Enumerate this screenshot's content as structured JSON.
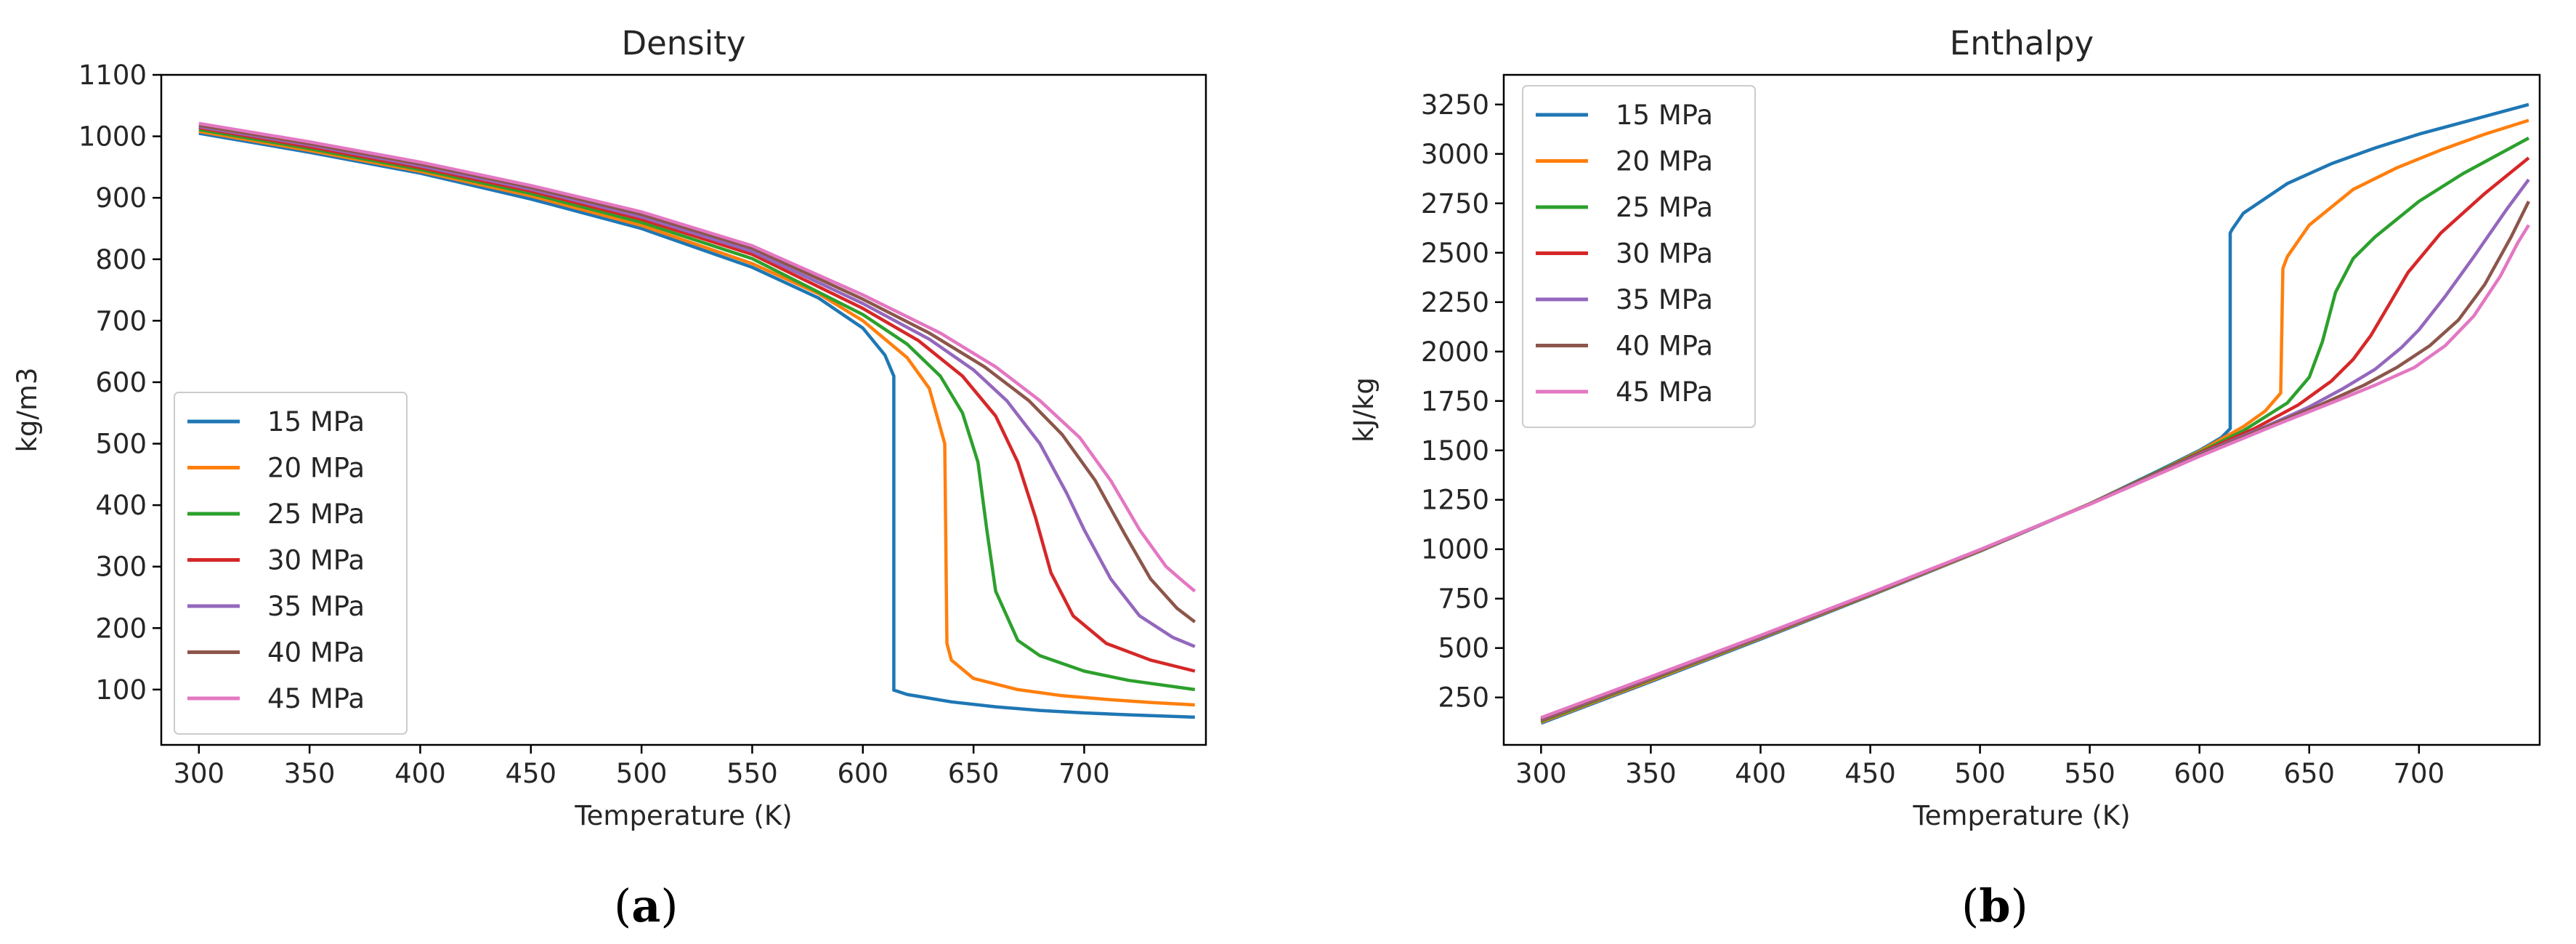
{
  "chart_data": [
    {
      "type": "line",
      "title": "Density",
      "xlabel": "Temperature (K)",
      "ylabel": "kg/m3",
      "caption": {
        "prefix": "(",
        "label": "a",
        "suffix": ")"
      },
      "xlim": [
        283,
        755
      ],
      "ylim": [
        10,
        1100
      ],
      "xticks": [
        300,
        350,
        400,
        450,
        500,
        550,
        600,
        650,
        700
      ],
      "yticks": [
        100,
        200,
        300,
        400,
        500,
        600,
        700,
        800,
        900,
        1000,
        1100
      ],
      "legend_position": "lower-left",
      "series": [
        {
          "name": "15 MPa",
          "color": "#1f77b4",
          "x": [
            300,
            350,
            400,
            450,
            500,
            550,
            580,
            600,
            610,
            614,
            614,
            615,
            620,
            640,
            660,
            680,
            700,
            720,
            750
          ],
          "y": [
            1005,
            974,
            940,
            898,
            850,
            787,
            737,
            688,
            644,
            610,
            99,
            98,
            92,
            80,
            72,
            66,
            62,
            59,
            55
          ]
        },
        {
          "name": "20 MPa",
          "color": "#ff7f0e",
          "x": [
            300,
            350,
            400,
            450,
            500,
            550,
            580,
            600,
            620,
            630,
            637,
            638,
            640,
            650,
            670,
            690,
            710,
            730,
            750
          ],
          "y": [
            1008,
            977,
            943,
            903,
            855,
            793,
            744,
            700,
            640,
            590,
            500,
            175,
            148,
            118,
            100,
            90,
            84,
            79,
            75
          ]
        },
        {
          "name": "25 MPa",
          "color": "#2ca02c",
          "x": [
            300,
            350,
            400,
            450,
            500,
            550,
            600,
            620,
            635,
            645,
            652,
            656,
            660,
            670,
            680,
            700,
            720,
            750
          ],
          "y": [
            1011,
            980,
            946,
            907,
            860,
            801,
            710,
            662,
            610,
            550,
            470,
            360,
            260,
            180,
            155,
            130,
            115,
            100
          ]
        },
        {
          "name": "30 MPa",
          "color": "#d62728",
          "x": [
            300,
            350,
            400,
            450,
            500,
            550,
            600,
            625,
            645,
            660,
            670,
            678,
            685,
            695,
            710,
            730,
            750
          ],
          "y": [
            1014,
            983,
            949,
            911,
            865,
            808,
            720,
            668,
            610,
            545,
            470,
            380,
            290,
            220,
            175,
            148,
            130
          ]
        },
        {
          "name": "35 MPa",
          "color": "#9467bd",
          "x": [
            300,
            350,
            400,
            450,
            500,
            550,
            600,
            630,
            650,
            665,
            680,
            692,
            700,
            712,
            725,
            740,
            750
          ],
          "y": [
            1016,
            986,
            952,
            914,
            869,
            813,
            728,
            670,
            620,
            570,
            500,
            420,
            360,
            280,
            220,
            185,
            170
          ]
        },
        {
          "name": "40 MPa",
          "color": "#8c564b",
          "x": [
            300,
            350,
            400,
            450,
            500,
            550,
            600,
            630,
            655,
            675,
            690,
            705,
            718,
            730,
            742,
            750
          ],
          "y": [
            1018,
            988,
            955,
            917,
            873,
            818,
            735,
            680,
            625,
            570,
            515,
            440,
            355,
            280,
            232,
            210
          ]
        },
        {
          "name": "45 MPa",
          "color": "#e377c2",
          "x": [
            300,
            350,
            400,
            450,
            500,
            550,
            600,
            635,
            660,
            680,
            698,
            712,
            725,
            737,
            745,
            750
          ],
          "y": [
            1021,
            991,
            958,
            920,
            877,
            822,
            742,
            680,
            625,
            570,
            510,
            440,
            360,
            300,
            275,
            260
          ]
        }
      ]
    },
    {
      "type": "line",
      "title": "Enthalpy",
      "xlabel": "Temperature (K)",
      "ylabel": "kJ/kg",
      "caption": {
        "prefix": "(",
        "label": "b",
        "suffix": ")"
      },
      "xlim": [
        283,
        755
      ],
      "ylim": [
        10,
        3400
      ],
      "xticks": [
        300,
        350,
        400,
        450,
        500,
        550,
        600,
        650,
        700
      ],
      "yticks": [
        250,
        500,
        750,
        1000,
        1250,
        1500,
        1750,
        2000,
        2250,
        2500,
        2750,
        3000,
        3250
      ],
      "legend_position": "upper-left",
      "series": [
        {
          "name": "15 MPa",
          "color": "#1f77b4",
          "x": [
            300,
            350,
            400,
            450,
            500,
            550,
            580,
            600,
            610,
            614,
            614,
            615,
            620,
            640,
            660,
            680,
            700,
            720,
            750
          ],
          "y": [
            120,
            330,
            545,
            765,
            990,
            1230,
            1390,
            1500,
            1565,
            1610,
            2600,
            2620,
            2700,
            2850,
            2950,
            3030,
            3100,
            3160,
            3250
          ]
        },
        {
          "name": "20 MPa",
          "color": "#ff7f0e",
          "x": [
            300,
            350,
            400,
            450,
            500,
            550,
            580,
            600,
            620,
            630,
            637,
            638,
            640,
            650,
            670,
            690,
            710,
            730,
            750
          ],
          "y": [
            125,
            335,
            550,
            768,
            992,
            1230,
            1385,
            1495,
            1620,
            1700,
            1790,
            2420,
            2480,
            2640,
            2820,
            2930,
            3020,
            3100,
            3170
          ]
        },
        {
          "name": "25 MPa",
          "color": "#2ca02c",
          "x": [
            300,
            350,
            400,
            450,
            500,
            550,
            600,
            620,
            640,
            650,
            656,
            662,
            670,
            680,
            700,
            720,
            750
          ],
          "y": [
            130,
            340,
            553,
            770,
            994,
            1230,
            1490,
            1600,
            1740,
            1870,
            2050,
            2300,
            2470,
            2580,
            2760,
            2900,
            3080
          ]
        },
        {
          "name": "30 MPa",
          "color": "#d62728",
          "x": [
            300,
            350,
            400,
            450,
            500,
            550,
            600,
            625,
            645,
            660,
            670,
            678,
            686,
            695,
            710,
            730,
            750
          ],
          "y": [
            135,
            345,
            556,
            772,
            995,
            1229,
            1485,
            1610,
            1730,
            1850,
            1960,
            2080,
            2230,
            2400,
            2600,
            2800,
            2980
          ]
        },
        {
          "name": "35 MPa",
          "color": "#9467bd",
          "x": [
            300,
            350,
            400,
            450,
            500,
            550,
            600,
            630,
            650,
            665,
            680,
            692,
            700,
            712,
            725,
            740,
            750
          ],
          "y": [
            138,
            348,
            558,
            774,
            996,
            1228,
            1480,
            1620,
            1720,
            1810,
            1910,
            2020,
            2110,
            2280,
            2480,
            2720,
            2870
          ]
        },
        {
          "name": "40 MPa",
          "color": "#8c564b",
          "x": [
            300,
            350,
            400,
            450,
            500,
            550,
            600,
            630,
            655,
            675,
            690,
            705,
            718,
            730,
            742,
            750
          ],
          "y": [
            142,
            351,
            561,
            776,
            997,
            1228,
            1475,
            1615,
            1730,
            1830,
            1920,
            2030,
            2160,
            2340,
            2580,
            2760
          ]
        },
        {
          "name": "45 MPa",
          "color": "#e377c2",
          "x": [
            300,
            350,
            400,
            450,
            500,
            550,
            600,
            635,
            660,
            680,
            698,
            712,
            725,
            737,
            745,
            750
          ],
          "y": [
            148,
            355,
            564,
            778,
            998,
            1227,
            1470,
            1630,
            1740,
            1830,
            1920,
            2030,
            2180,
            2380,
            2550,
            2640
          ]
        }
      ]
    }
  ]
}
